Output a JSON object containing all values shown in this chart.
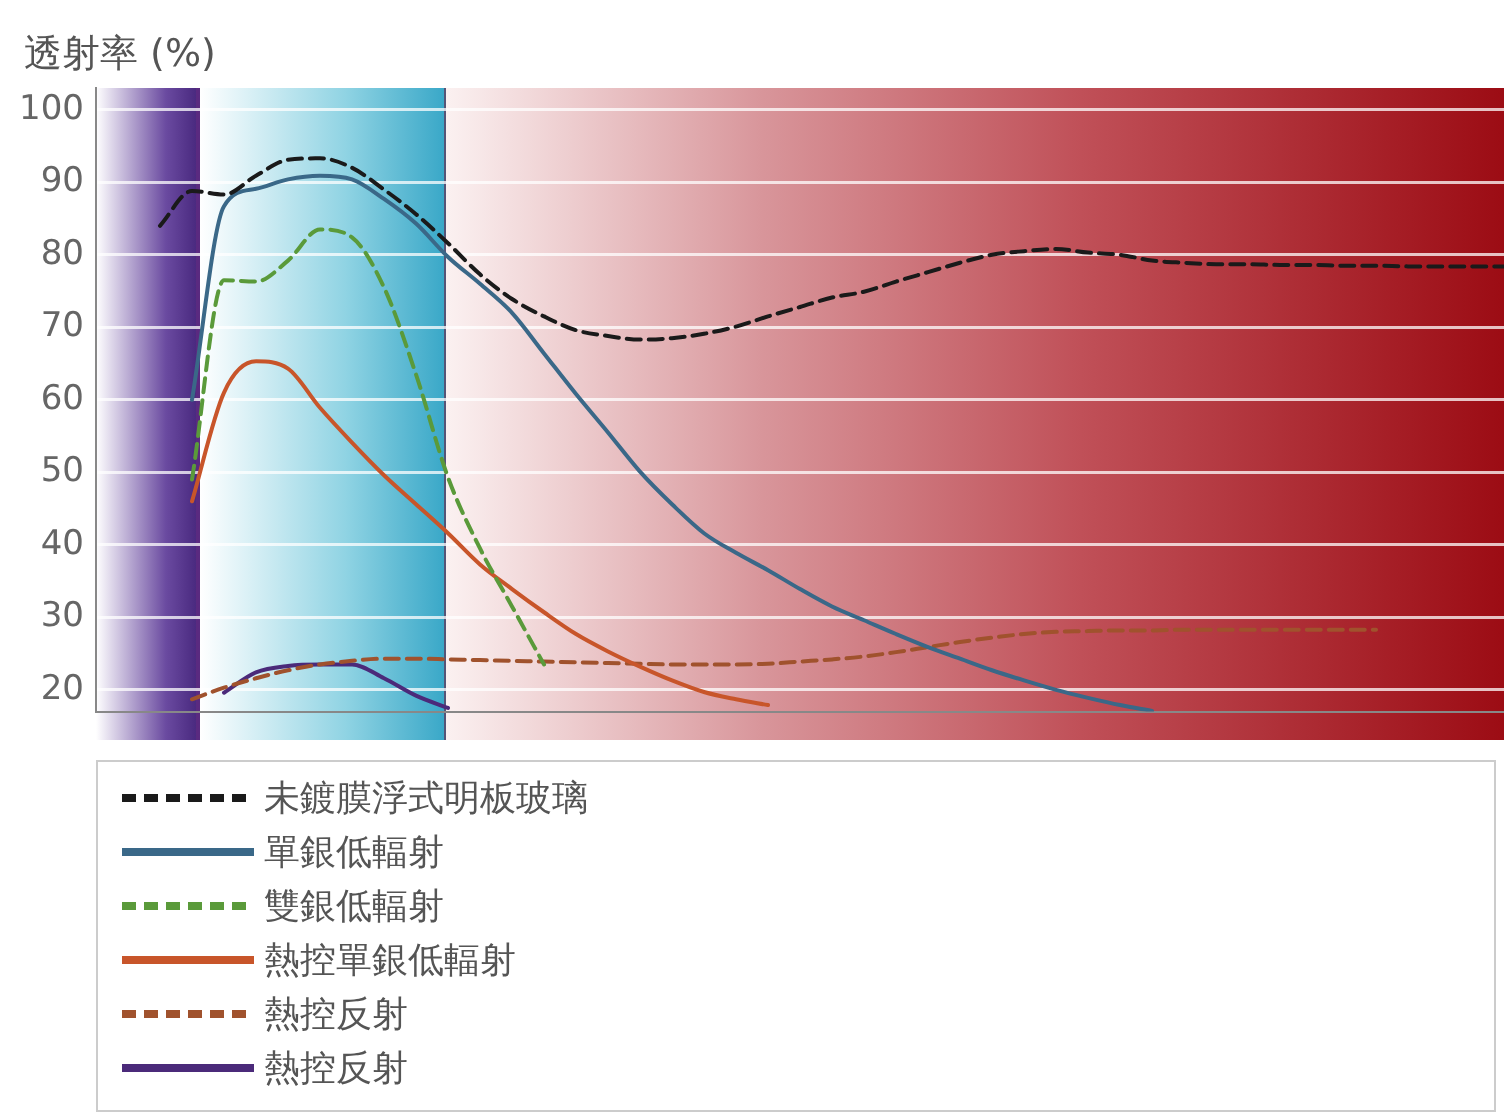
{
  "chart_data": {
    "type": "line",
    "ylabel": "透射率 (%)",
    "ylim": [
      17,
      103
    ],
    "yticks": [
      20,
      30,
      40,
      50,
      60,
      70,
      80,
      90,
      100
    ],
    "grid": "y",
    "tick_labels": "y",
    "legend": "bottom",
    "marker": "none",
    "categories": [
      null,
      null,
      null,
      null,
      null,
      null,
      null,
      null,
      null,
      null,
      null,
      null,
      null,
      null,
      null,
      null,
      null,
      null,
      null,
      null,
      null,
      null,
      null,
      null,
      null,
      null,
      null,
      null,
      null,
      null,
      null,
      null,
      null,
      null,
      null,
      null,
      null,
      null,
      null,
      null,
      null,
      null,
      null,
      null,
      null
    ],
    "series": [
      {
        "name": "未鍍膜浮式明板玻璃",
        "color": "#1a1a1a",
        "line_style": "dashed",
        "values": [
          null,
          null,
          84,
          88.8,
          88.3,
          90.9,
          93.1,
          93.3,
          92,
          89,
          85.6,
          81.6,
          77.3,
          73.9,
          71.5,
          69.6,
          68.8,
          68.3,
          68.5,
          69.1,
          70.1,
          71.5,
          72.8,
          74.1,
          74.9,
          76.3,
          77.6,
          78.9,
          80,
          80.5,
          80.8,
          80.3,
          80,
          79.2,
          78.9,
          78.7,
          78.7,
          78.6,
          78.6,
          78.5,
          78.5,
          78.4,
          78.4,
          78.4,
          78.4
        ]
      },
      {
        "name": "單銀低輻射",
        "color": "#3a6888",
        "line_style": "solid",
        "values": [
          null,
          null,
          null,
          60,
          86.7,
          89.1,
          90.4,
          90.9,
          90.4,
          87.7,
          84.3,
          79.7,
          76,
          72,
          66.4,
          60.8,
          55.5,
          50.1,
          45.6,
          41.6,
          38.9,
          36.5,
          33.9,
          31.5,
          29.6,
          27.7,
          25.9,
          24.3,
          22.7,
          21.3,
          20,
          18.9,
          17.9,
          17.1,
          null,
          null,
          null,
          null,
          null,
          null,
          null,
          null,
          null,
          null,
          null
        ]
      },
      {
        "name": "雙銀低輻射",
        "color": "#5a9a3a",
        "line_style": "dashed",
        "values": [
          null,
          null,
          null,
          49,
          76.5,
          76.3,
          79.2,
          83.5,
          82.4,
          75.5,
          63.5,
          49.3,
          39.5,
          31.5,
          23.5,
          null,
          null,
          null,
          null,
          null,
          null,
          null,
          null,
          null,
          null,
          null,
          null,
          null,
          null,
          null,
          null,
          null,
          null,
          null,
          null,
          null,
          null,
          null,
          null,
          null,
          null,
          null,
          null,
          null,
          null
        ]
      },
      {
        "name": "熱控單銀低輻射",
        "color": "#c8552a",
        "line_style": "solid",
        "values": [
          null,
          null,
          null,
          46,
          61,
          65.3,
          64.3,
          58.9,
          54.1,
          49.6,
          45.6,
          41.6,
          37.3,
          33.9,
          30.7,
          27.7,
          25.3,
          23.2,
          21.3,
          19.7,
          18.7,
          17.9,
          null,
          null,
          null,
          null,
          null,
          null,
          null,
          null,
          null,
          null,
          null,
          null,
          null,
          null,
          null,
          null,
          null,
          null,
          null,
          null,
          null,
          null,
          null
        ]
      },
      {
        "name": "熱控反射",
        "color": "#a0522d",
        "line_style": "dashed",
        "values": [
          null,
          null,
          null,
          18.7,
          20.3,
          21.6,
          22.7,
          23.5,
          24,
          24.3,
          24.3,
          24.2,
          24.1,
          24,
          23.9,
          23.8,
          23.7,
          23.6,
          23.5,
          23.5,
          23.5,
          23.6,
          23.9,
          24.2,
          24.6,
          25.2,
          25.9,
          26.6,
          27.2,
          27.7,
          28,
          28.1,
          28.2,
          28.2,
          28.3,
          28.3,
          28.3,
          28.3,
          28.3,
          28.3,
          28.3,
          null,
          null,
          null,
          null
        ]
      },
      {
        "name": "熱控反射",
        "color": "#4b2a7a",
        "line_style": "solid",
        "values": [
          null,
          null,
          null,
          null,
          19.6,
          22.4,
          23.3,
          23.5,
          23.5,
          21.6,
          19.2,
          17.5,
          null,
          null,
          null,
          null,
          null,
          null,
          null,
          null,
          null,
          null,
          null,
          null,
          null,
          null,
          null,
          null,
          null,
          null,
          null,
          null,
          null,
          null,
          null,
          null,
          null,
          null,
          null,
          null,
          null,
          null,
          null,
          null,
          null
        ]
      }
    ]
  }
}
